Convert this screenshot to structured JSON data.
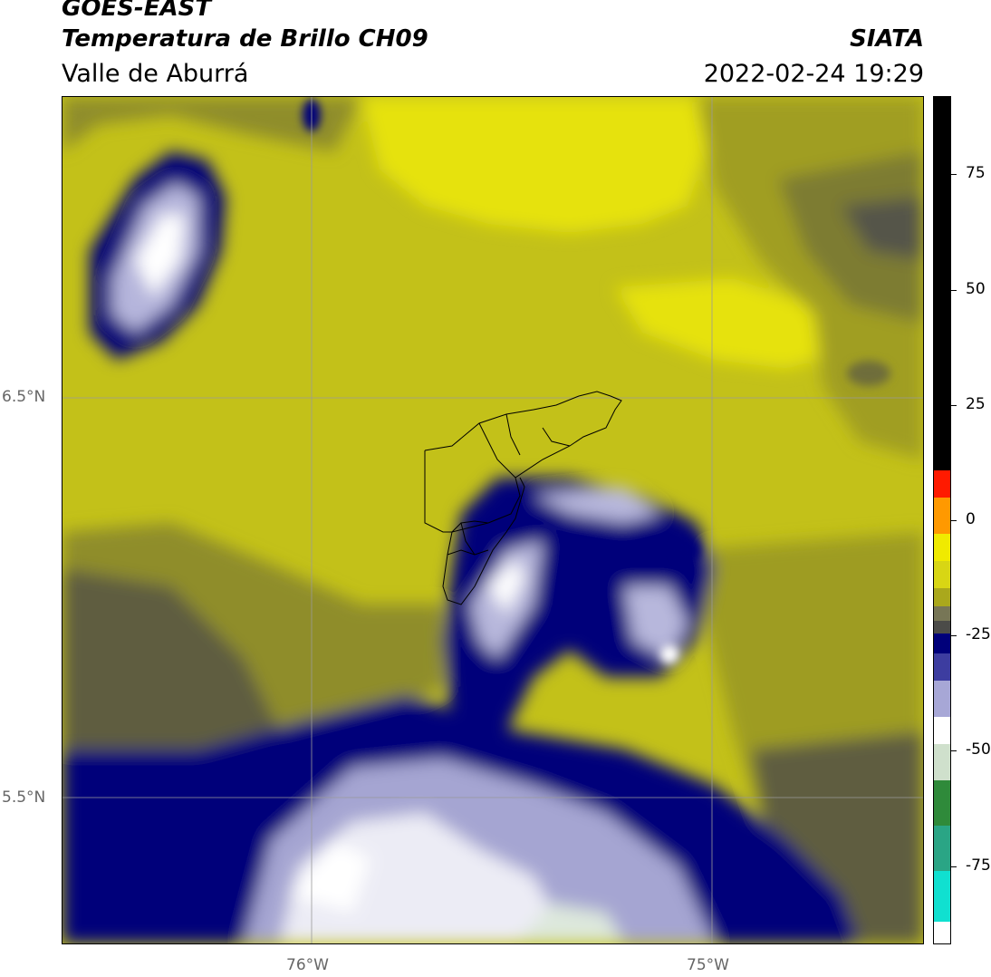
{
  "header": {
    "satellite": "GOES-EAST",
    "product": "Temperatura de Brillo CH09",
    "region": "Valle de Aburrá",
    "agency": "SIATA",
    "datetime": "2022-02-24 19:29"
  },
  "map": {
    "lat_ticks": [
      {
        "value": 6.5,
        "label": "6.5°N"
      },
      {
        "value": 5.5,
        "label": "5.5°N"
      }
    ],
    "lon_ticks": [
      {
        "value": -76.0,
        "label": "76°W"
      },
      {
        "value": -75.0,
        "label": "75°W"
      }
    ],
    "extent": {
      "lon_min": -76.62,
      "lon_max": -74.47,
      "lat_min": 5.13,
      "lat_max": 7.24
    },
    "gridlines": true
  },
  "colorbar": {
    "ticks": [
      {
        "value": 75,
        "label": "75"
      },
      {
        "value": 50,
        "label": "50"
      },
      {
        "value": 25,
        "label": "25"
      },
      {
        "value": 0,
        "label": "0"
      },
      {
        "value": -25,
        "label": "-25"
      },
      {
        "value": -50,
        "label": "-50"
      },
      {
        "value": -75,
        "label": "-75"
      }
    ],
    "range": [
      -92,
      92
    ],
    "colors": {
      "warm": "#000000",
      "red": "#ff1a00",
      "orange": "#ff9900",
      "yellow": "#f0ea00",
      "olive": "#aaa81c",
      "darkgray": "#4b4b48",
      "navy": "#00007a",
      "lavender": "#a7a7d6",
      "white": "#ffffff",
      "green": "#2f8a3a",
      "cyan": "#10e0d0"
    }
  }
}
